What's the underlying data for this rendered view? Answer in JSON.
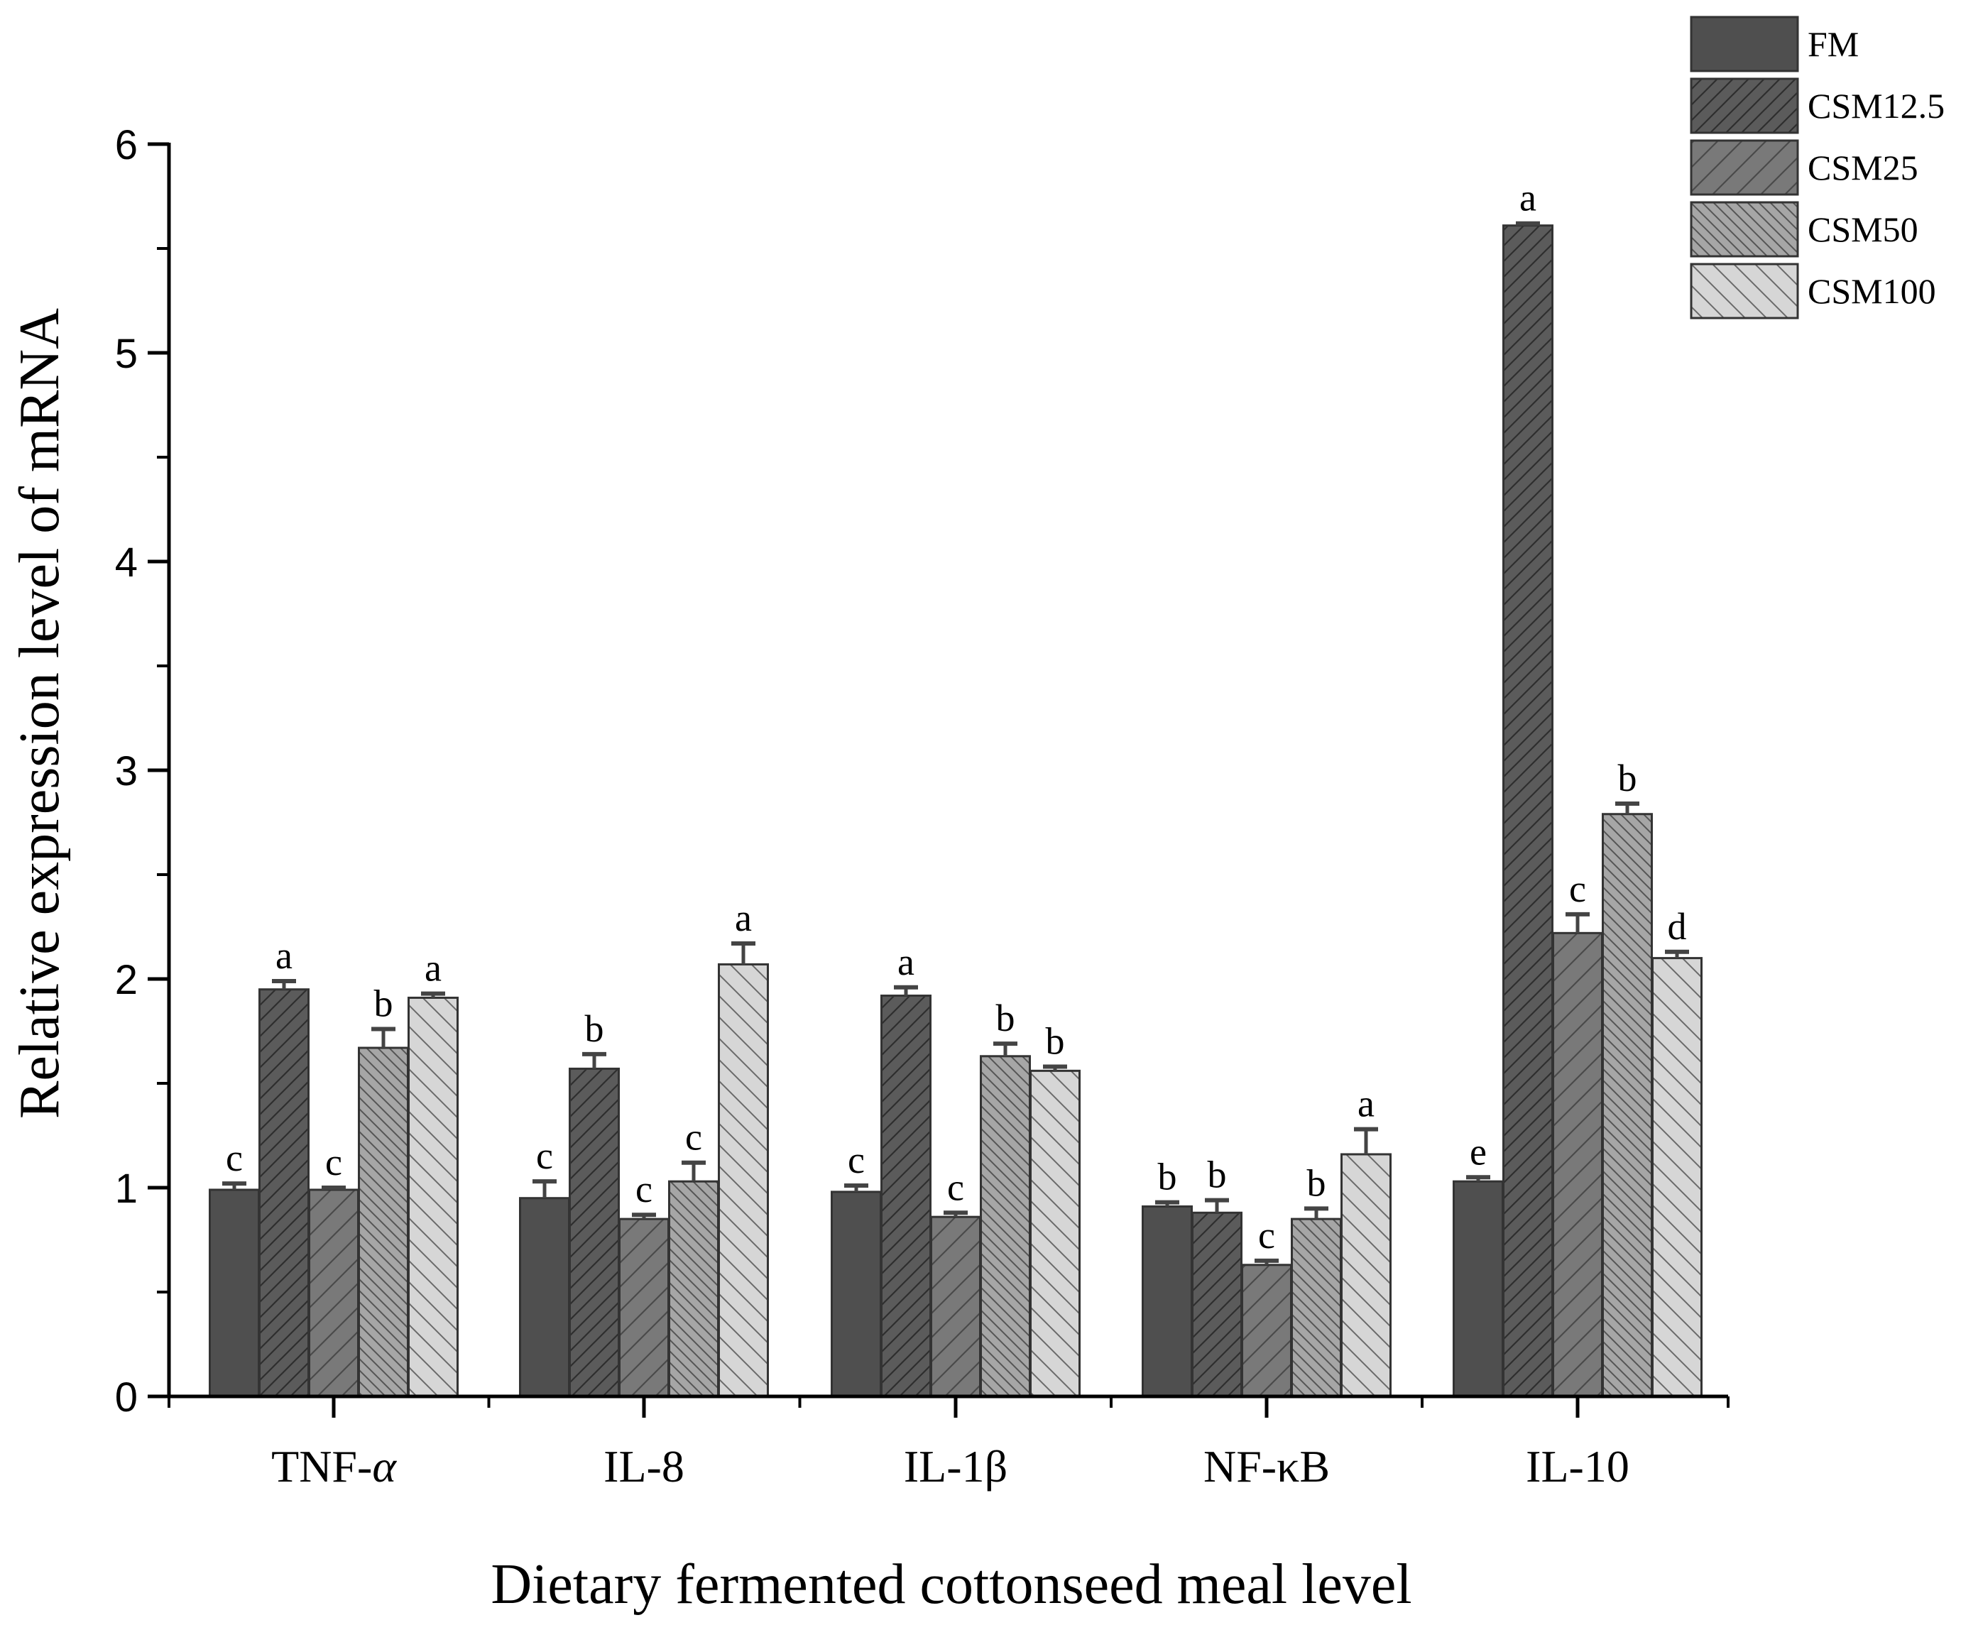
{
  "chart_data": {
    "type": "bar",
    "title": "",
    "xlabel": "Dietary fermented cottonseed meal level",
    "ylabel": "Relative expression level of mRNA",
    "ylim": [
      0,
      6
    ],
    "yticks": [
      "0",
      "1",
      "2",
      "3",
      "4",
      "5",
      "6"
    ],
    "legend_position": "top-right",
    "categories": [
      "TNF-α",
      "IL-8",
      "IL-1β",
      "NF-κB",
      "IL-10"
    ],
    "category_styles": [
      "normal",
      "normal",
      "normal",
      "normal",
      "normal"
    ],
    "category_italic_suffix": [
      "α",
      "",
      "",
      "",
      ""
    ],
    "series": [
      {
        "name": "FM",
        "color": "#4f4f4f",
        "pattern": "solid",
        "values": [
          0.99,
          0.95,
          0.98,
          0.91,
          1.03
        ],
        "errors": [
          0.03,
          0.08,
          0.03,
          0.02,
          0.02
        ],
        "letters": [
          "c",
          "c",
          "c",
          "b",
          "e"
        ]
      },
      {
        "name": "CSM12.5",
        "color": "#5b5b5b",
        "pattern": "diag-dense",
        "values": [
          1.95,
          1.57,
          1.92,
          0.88,
          5.61
        ],
        "errors": [
          0.04,
          0.07,
          0.04,
          0.06,
          0.01
        ],
        "letters": [
          "a",
          "b",
          "a",
          "b",
          "a"
        ]
      },
      {
        "name": "CSM25",
        "color": "#797979",
        "pattern": "diag-sparse",
        "values": [
          0.99,
          0.85,
          0.86,
          0.63,
          2.22
        ],
        "errors": [
          0.01,
          0.02,
          0.02,
          0.02,
          0.09
        ],
        "letters": [
          "c",
          "c",
          "c",
          "c",
          "c"
        ]
      },
      {
        "name": "CSM50",
        "color": "#a6a6a6",
        "pattern": "back-dense",
        "values": [
          1.67,
          1.03,
          1.63,
          0.85,
          2.79
        ],
        "errors": [
          0.09,
          0.09,
          0.06,
          0.05,
          0.05
        ],
        "letters": [
          "b",
          "c",
          "b",
          "b",
          "b"
        ]
      },
      {
        "name": "CSM100",
        "color": "#d6d6d6",
        "pattern": "back-sparse",
        "values": [
          1.91,
          2.07,
          1.56,
          1.16,
          2.1
        ],
        "errors": [
          0.02,
          0.1,
          0.02,
          0.12,
          0.03
        ],
        "letters": [
          "a",
          "a",
          "b",
          "a",
          "d"
        ]
      }
    ]
  }
}
